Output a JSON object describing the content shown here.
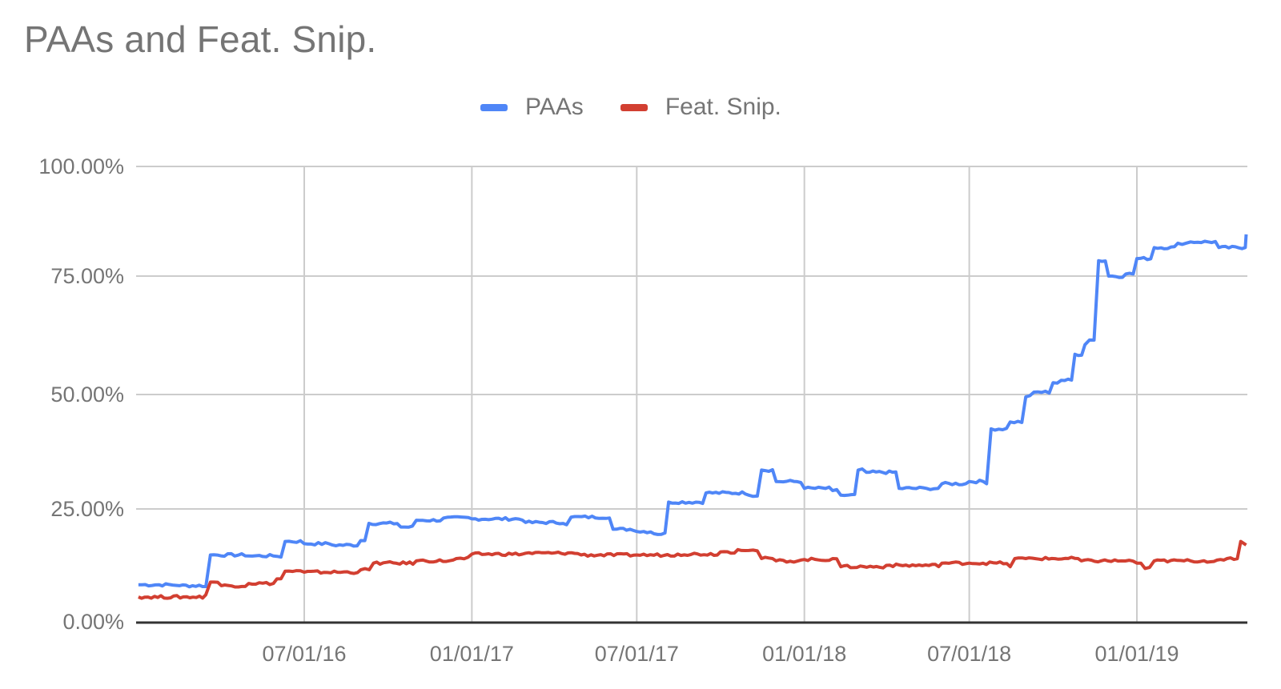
{
  "chart_data": {
    "type": "line",
    "title": "PAAs and Feat. Snip.",
    "xlabel": "",
    "ylabel": "",
    "ylim": [
      0,
      100
    ],
    "y_ticks": [
      "0.00%",
      "25.00%",
      "50.00%",
      "75.00%",
      "100.00%"
    ],
    "x_ticks": [
      "07/01/16",
      "01/01/17",
      "07/01/17",
      "01/01/18",
      "07/01/18",
      "01/01/19"
    ],
    "x_range": [
      "01/01/16",
      "05/05/19"
    ],
    "grid": true,
    "legend_position": "top",
    "series": [
      {
        "name": "PAAs",
        "color": "#4f86f7",
        "x": [
          "01/01/16",
          "02/15/16",
          "03/15/16",
          "03/20/16",
          "05/01/16",
          "06/01/16",
          "06/10/16",
          "07/01/16",
          "08/01/16",
          "09/01/16",
          "09/10/16",
          "10/15/16",
          "11/01/16",
          "12/01/16",
          "01/01/17",
          "03/01/17",
          "04/15/17",
          "04/20/17",
          "06/01/17",
          "06/05/17",
          "07/01/17",
          "07/20/17",
          "08/05/17",
          "09/15/17",
          "11/01/17",
          "11/15/17",
          "12/01/17",
          "01/01/18",
          "02/01/18",
          "02/10/18",
          "03/01/18",
          "03/10/18",
          "04/15/18",
          "05/15/18",
          "06/01/18",
          "07/01/18",
          "07/20/18",
          "07/25/18",
          "08/15/18",
          "09/01/18",
          "09/10/18",
          "10/01/18",
          "10/10/18",
          "10/25/18",
          "11/05/18",
          "11/10/18",
          "11/20/18",
          "12/01/18",
          "12/20/18",
          "01/01/19",
          "01/20/19",
          "02/15/19",
          "03/01/19",
          "04/01/19",
          "04/30/19",
          "05/01/19"
        ],
        "values": [
          8.2,
          8.0,
          7.8,
          14.8,
          14.6,
          14.5,
          17.8,
          17.3,
          17.0,
          18.0,
          21.8,
          21.0,
          22.5,
          23.0,
          22.8,
          22.0,
          21.5,
          23.2,
          23.0,
          20.5,
          20.0,
          19.5,
          26.5,
          28.5,
          28.0,
          33.5,
          31.0,
          29.5,
          29.0,
          28.0,
          33.5,
          33.0,
          29.5,
          29.5,
          30.5,
          31.0,
          30.5,
          42.5,
          44.0,
          49.5,
          50.5,
          52.5,
          53.0,
          58.5,
          60.5,
          61.5,
          78.5,
          75.0,
          75.5,
          79.0,
          81.5,
          82.5,
          82.8,
          81.5,
          81.5,
          84.5
        ]
      },
      {
        "name": "Feat. Snip.",
        "color": "#d23f31",
        "x": [
          "01/01/16",
          "03/15/16",
          "03/20/16",
          "04/01/16",
          "05/01/16",
          "06/01/16",
          "06/10/16",
          "07/01/16",
          "09/01/16",
          "09/15/16",
          "11/01/16",
          "12/15/16",
          "01/01/17",
          "03/01/17",
          "05/01/17",
          "07/01/17",
          "08/15/17",
          "10/01/17",
          "10/20/17",
          "11/01/17",
          "11/15/17",
          "12/01/17",
          "01/01/18",
          "02/01/18",
          "02/10/18",
          "04/01/18",
          "06/01/18",
          "07/01/18",
          "08/15/18",
          "08/20/18",
          "09/01/18",
          "11/01/18",
          "12/15/18",
          "01/01/19",
          "01/10/19",
          "01/20/19",
          "03/01/19",
          "04/10/19",
          "04/25/19",
          "05/01/19"
        ],
        "values": [
          5.5,
          6.0,
          8.8,
          8.0,
          8.5,
          9.5,
          11.2,
          11.0,
          11.5,
          13.0,
          13.5,
          14.0,
          15.0,
          15.2,
          14.8,
          14.8,
          15.0,
          15.5,
          16.0,
          15.8,
          14.0,
          13.5,
          13.8,
          14.0,
          12.2,
          12.5,
          13.0,
          13.0,
          12.2,
          14.0,
          14.0,
          13.5,
          13.5,
          13.0,
          11.8,
          13.5,
          13.5,
          14.0,
          17.8,
          17.0
        ]
      }
    ]
  },
  "legend": {
    "items": [
      {
        "label": "PAAs",
        "color": "#4f86f7"
      },
      {
        "label": "Feat. Snip.",
        "color": "#d23f31"
      }
    ]
  },
  "style": {
    "grid_color": "#cccccc",
    "axis_color": "#333333",
    "text_color": "#757575"
  }
}
